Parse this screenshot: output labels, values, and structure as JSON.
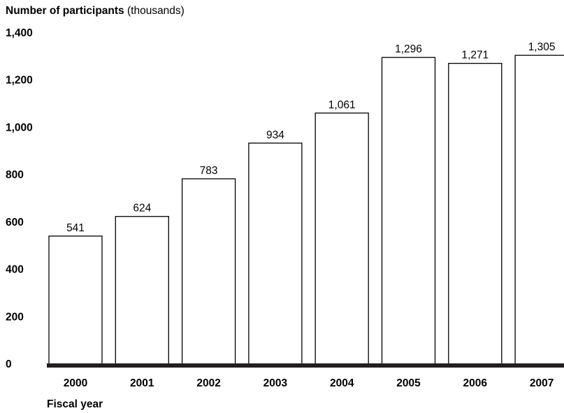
{
  "chart_data": {
    "type": "bar",
    "title": "Number of participants",
    "title_suffix": "(thousands)",
    "xlabel": "Fiscal year",
    "ylabel": "",
    "categories": [
      "2000",
      "2001",
      "2002",
      "2003",
      "2004",
      "2005",
      "2006",
      "2007"
    ],
    "values": [
      541,
      624,
      783,
      934,
      1061,
      1296,
      1271,
      1305
    ],
    "value_labels": [
      "541",
      "624",
      "783",
      "934",
      "1,061",
      "1,296",
      "1,271",
      "1,305"
    ],
    "ylim": [
      0,
      1400
    ],
    "yticks": [
      0,
      200,
      400,
      600,
      800,
      1000,
      1200,
      1400
    ],
    "ytick_labels": [
      "0",
      "200",
      "400",
      "600",
      "800",
      "1,000",
      "1,200",
      "1,400"
    ],
    "grid": false,
    "bar_fill": "#ffffff",
    "bar_stroke": "#000000",
    "axis_color": "#231f20"
  }
}
